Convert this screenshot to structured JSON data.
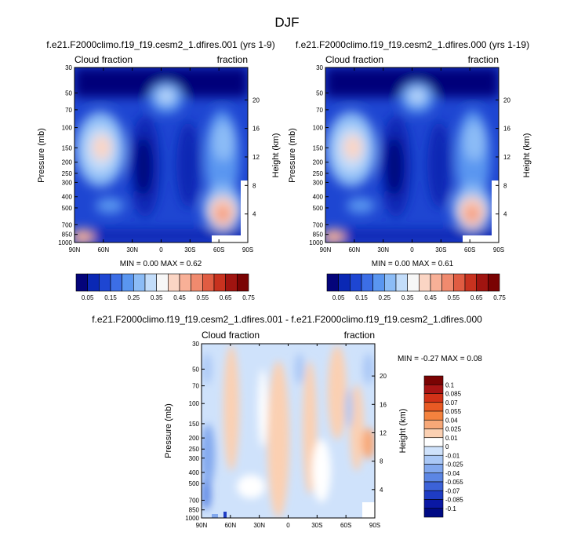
{
  "main_title": "DJF",
  "chart_data": [
    {
      "type": "heatmap",
      "id": "top-left",
      "title": "f.e21.F2000climo.f19_f19.cesm2_1.dfires.001 (yrs 1-9)",
      "left_label": "Cloud fraction",
      "right_label": "fraction",
      "ylabel": "Pressure (mb)",
      "ylabel_right": "Height (km)",
      "x_ticks": [
        "90N",
        "60N",
        "30N",
        "0",
        "30S",
        "60S",
        "90S"
      ],
      "y_ticks": [
        "30",
        "50",
        "70",
        "100",
        "150",
        "200",
        "250",
        "300",
        "400",
        "500",
        "700",
        "850",
        "1000"
      ],
      "height_ticks": [
        "20",
        "16",
        "12",
        "8",
        "4"
      ],
      "stats": "MIN =  0.00  MAX =  0.62",
      "colorbar_labels": [
        "0.05",
        "0.15",
        "0.25",
        "0.35",
        "0.45",
        "0.55",
        "0.65",
        "0.75"
      ]
    },
    {
      "type": "heatmap",
      "id": "top-right",
      "title": "f.e21.F2000climo.f19_f19.cesm2_1.dfires.000 (yrs 1-19)",
      "left_label": "Cloud fraction",
      "right_label": "fraction",
      "ylabel": "Pressure (mb)",
      "ylabel_right": "Height (km)",
      "x_ticks": [
        "90N",
        "60N",
        "30N",
        "0",
        "30S",
        "60S",
        "90S"
      ],
      "y_ticks": [
        "30",
        "50",
        "70",
        "100",
        "150",
        "200",
        "250",
        "300",
        "400",
        "500",
        "700",
        "850",
        "1000"
      ],
      "height_ticks": [
        "20",
        "16",
        "12",
        "8",
        "4"
      ],
      "stats": "MIN =  0.00  MAX =  0.61",
      "colorbar_labels": [
        "0.05",
        "0.15",
        "0.25",
        "0.35",
        "0.45",
        "0.55",
        "0.65",
        "0.75"
      ]
    },
    {
      "type": "heatmap",
      "id": "bottom",
      "title": "f.e21.F2000climo.f19_f19.cesm2_1.dfires.001 - f.e21.F2000climo.f19_f19.cesm2_1.dfires.000",
      "left_label": "Cloud fraction",
      "right_label": "fraction",
      "ylabel": "Pressure (mb)",
      "ylabel_right": "Height (km)",
      "x_ticks": [
        "90N",
        "60N",
        "30N",
        "0",
        "30S",
        "60S",
        "90S"
      ],
      "y_ticks": [
        "30",
        "50",
        "70",
        "100",
        "150",
        "200",
        "250",
        "300",
        "400",
        "500",
        "700",
        "850",
        "1000"
      ],
      "height_ticks": [
        "20",
        "16",
        "12",
        "8",
        "4"
      ],
      "stats": "MIN = -0.27  MAX =   0.08",
      "colorbar_labels": [
        "0.1",
        "0.085",
        "0.07",
        "0.055",
        "0.04",
        "0.025",
        "0.01",
        "0",
        "-0.01",
        "-0.025",
        "-0.04",
        "-0.055",
        "-0.07",
        "-0.085",
        "-0.1"
      ]
    }
  ],
  "colors": {
    "abs_scale": [
      "#04047a",
      "#0a28b4",
      "#1e46d2",
      "#3c6ee6",
      "#5a96f0",
      "#8cbcf6",
      "#c3ddfa",
      "#f7f7f7",
      "#fbd5c4",
      "#f8b097",
      "#f08a6e",
      "#e05c42",
      "#c8321f",
      "#a01410",
      "#7a0303"
    ],
    "diff_scale": [
      "#7a0303",
      "#a81414",
      "#d23218",
      "#e85a24",
      "#f4823e",
      "#f7a878",
      "#fbd0b2",
      "#ffffff",
      "#cfe2fb",
      "#aac8f6",
      "#82a8ee",
      "#5c86e4",
      "#3c62d8",
      "#1e3cc4",
      "#0a18a4",
      "#000a84"
    ]
  }
}
